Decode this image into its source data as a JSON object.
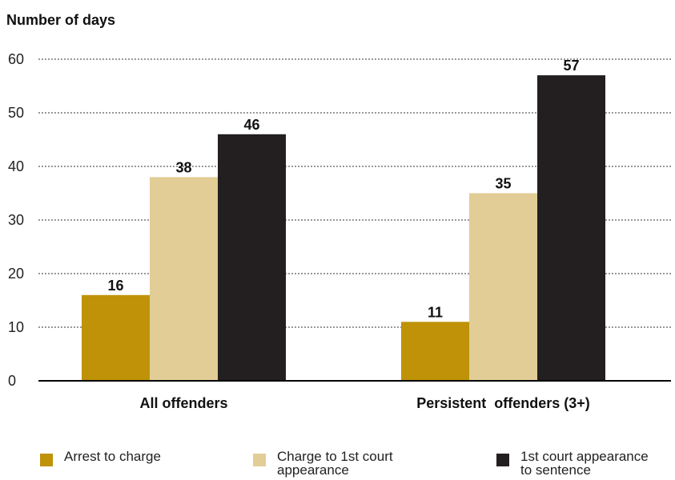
{
  "chart_data": {
    "type": "bar",
    "title": "",
    "ylabel": "Number of days",
    "xlabel": "",
    "ylim": [
      0,
      60
    ],
    "yticks": [
      0,
      10,
      20,
      30,
      40,
      50,
      60
    ],
    "ytick_labels": [
      "0",
      "10",
      "20",
      "30",
      "40",
      "50",
      "60"
    ],
    "grid": true,
    "categories": [
      "All offenders",
      "Persistent  offenders (3+)"
    ],
    "series": [
      {
        "name": "Arrest to charge",
        "color": "#bf9207",
        "values": [
          16,
          11
        ]
      },
      {
        "name": "Charge to 1st court\nappearance",
        "color": "#e1cd95",
        "values": [
          38,
          35
        ]
      },
      {
        "name": "1st court appearance\nto sentence",
        "color": "#231f20",
        "values": [
          46,
          57
        ]
      }
    ],
    "data_labels": [
      [
        "16",
        "11"
      ],
      [
        "38",
        "35"
      ],
      [
        "46",
        "57"
      ]
    ],
    "legend_position": "bottom"
  }
}
